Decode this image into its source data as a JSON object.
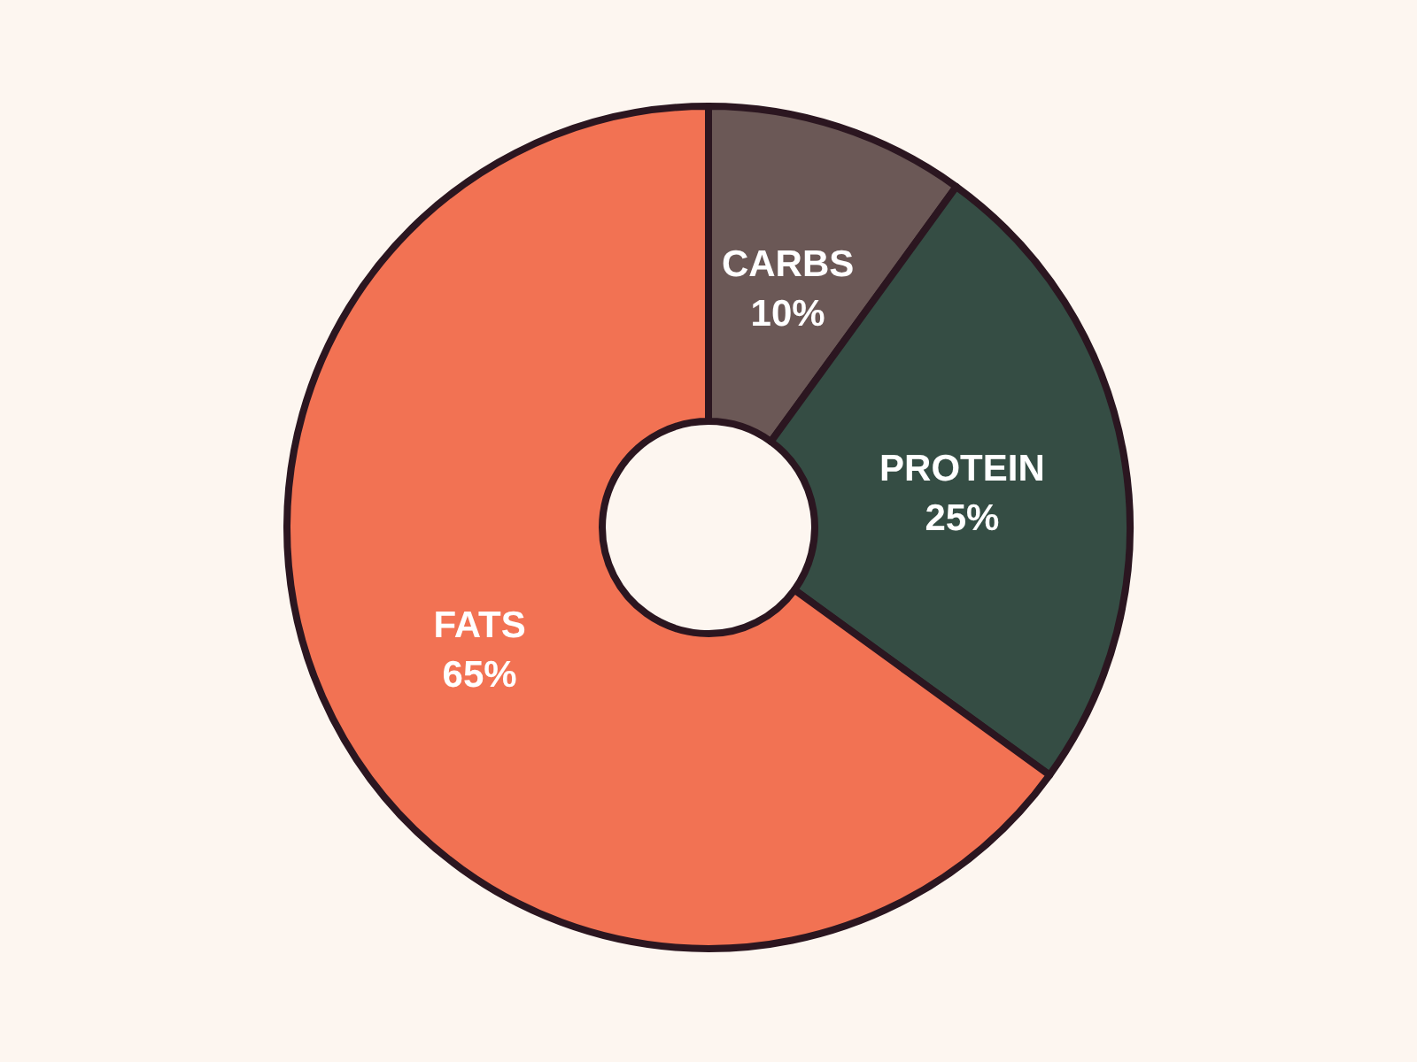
{
  "chart_data": {
    "type": "donut",
    "categories": [
      "CARBS",
      "PROTEIN",
      "FATS"
    ],
    "values": [
      10,
      25,
      65
    ],
    "colors": [
      "#6b5856",
      "#354d44",
      "#f27253"
    ],
    "value_labels": [
      "10%",
      "25%",
      "65%"
    ]
  }
}
